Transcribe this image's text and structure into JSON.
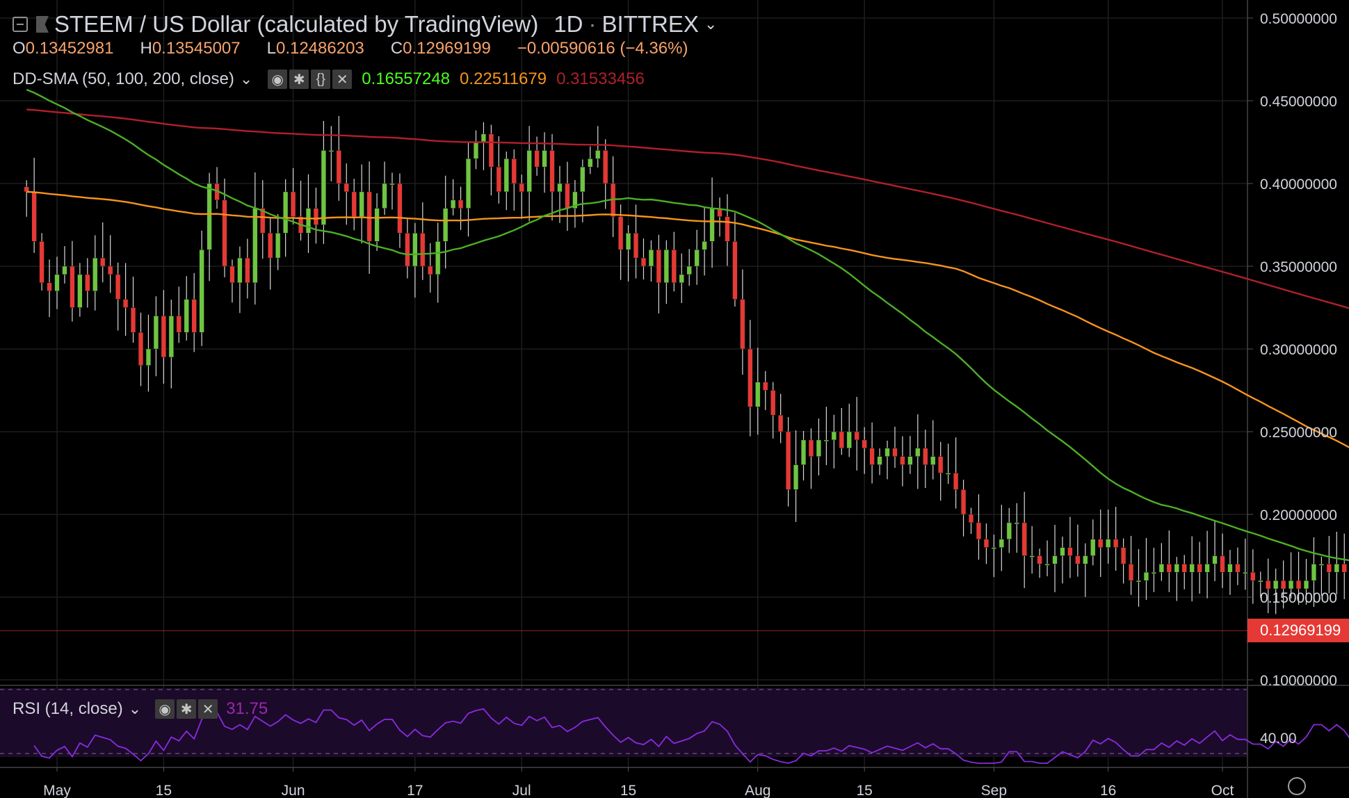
{
  "header": {
    "title": "STEEM / US Dollar (calculated by TradingView)",
    "interval": "1D",
    "exchange": "BITTREX"
  },
  "ohlc": {
    "open_label": "O",
    "open": "0.13452981",
    "high_label": "H",
    "high": "0.13545007",
    "low_label": "L",
    "low": "0.12486203",
    "close_label": "C",
    "close": "0.12969199",
    "change": "−0.00590616 (−4.36%)"
  },
  "sma_legend": {
    "name": "DD-SMA (50, 100, 200, close)",
    "sma50": "0.16557248",
    "sma100": "0.22511679",
    "sma200": "0.31533456"
  },
  "rsi_legend": {
    "name": "RSI (14, close)",
    "value": "31.75"
  },
  "last_price_tag": "0.12969199",
  "colors": {
    "up": "#6ec541",
    "down": "#e53935",
    "sma50": "#4caf26",
    "sma100": "#f7941d",
    "sma200": "#b0202a",
    "rsi": "#8a2be2",
    "rsi_bg": "#1c0a2a",
    "grid": "#1e1e1e",
    "axis_text": "#d1d4dc"
  },
  "icons": [
    "collapse-icon",
    "flag-icon",
    "chevron-down-icon",
    "eye-icon",
    "gear-icon",
    "code-icon",
    "close-icon",
    "settings-circle-icon"
  ],
  "chart_data": [
    {
      "type": "candlestick",
      "title": "STEEM / US Dollar (calculated by TradingView) 1D BITTREX",
      "x_tick_labels": [
        "May",
        "15",
        "Jun",
        "17",
        "Jul",
        "15",
        "Aug",
        "15",
        "Sep",
        "16",
        "Oct"
      ],
      "y_tick_labels": [
        "0.50000000",
        "0.45000000",
        "0.40000000",
        "0.35000000",
        "0.30000000",
        "0.25000000",
        "0.20000000",
        "0.15000000",
        "0.10000000"
      ],
      "ylim": [
        0.1,
        0.5
      ],
      "x_start": "2019-04-27",
      "closes": [
        0.395,
        0.365,
        0.34,
        0.335,
        0.345,
        0.35,
        0.325,
        0.345,
        0.335,
        0.355,
        0.35,
        0.345,
        0.33,
        0.325,
        0.31,
        0.29,
        0.3,
        0.32,
        0.295,
        0.32,
        0.31,
        0.33,
        0.31,
        0.36,
        0.4,
        0.39,
        0.35,
        0.34,
        0.355,
        0.34,
        0.385,
        0.37,
        0.355,
        0.37,
        0.395,
        0.38,
        0.37,
        0.385,
        0.375,
        0.42,
        0.42,
        0.4,
        0.395,
        0.38,
        0.395,
        0.365,
        0.385,
        0.4,
        0.4,
        0.37,
        0.35,
        0.37,
        0.35,
        0.345,
        0.365,
        0.385,
        0.39,
        0.385,
        0.415,
        0.425,
        0.43,
        0.41,
        0.395,
        0.415,
        0.4,
        0.395,
        0.42,
        0.41,
        0.42,
        0.395,
        0.4,
        0.385,
        0.395,
        0.41,
        0.415,
        0.42,
        0.4,
        0.38,
        0.36,
        0.37,
        0.355,
        0.35,
        0.36,
        0.34,
        0.36,
        0.34,
        0.345,
        0.35,
        0.36,
        0.365,
        0.385,
        0.38,
        0.365,
        0.33,
        0.3,
        0.265,
        0.28,
        0.275,
        0.26,
        0.25,
        0.215,
        0.23,
        0.245,
        0.235,
        0.245,
        0.245,
        0.25,
        0.24,
        0.25,
        0.245,
        0.24,
        0.23,
        0.235,
        0.24,
        0.235,
        0.23,
        0.235,
        0.24,
        0.23,
        0.235,
        0.225,
        0.225,
        0.215,
        0.2,
        0.195,
        0.185,
        0.18,
        0.18,
        0.185,
        0.195,
        0.195,
        0.175,
        0.175,
        0.17,
        0.17,
        0.175,
        0.18,
        0.175,
        0.17,
        0.175,
        0.185,
        0.18,
        0.185,
        0.18,
        0.17,
        0.16,
        0.16,
        0.165,
        0.165,
        0.17,
        0.165,
        0.17,
        0.165,
        0.17,
        0.165,
        0.17,
        0.175,
        0.165,
        0.17,
        0.165,
        0.165,
        0.16,
        0.16,
        0.155,
        0.16,
        0.155,
        0.16,
        0.155,
        0.16,
        0.17,
        0.17,
        0.165,
        0.17,
        0.165,
        0.155,
        0.13,
        0.135,
        0.13,
        0.137,
        0.137,
        0.13
      ],
      "sma50_endpoints": {
        "start": 0.458,
        "end": 0.1656
      },
      "sma100_endpoints": {
        "start": 0.395,
        "end": 0.2251
      },
      "sma200_endpoints": {
        "start": 0.445,
        "end": 0.3153
      }
    },
    {
      "type": "line",
      "title": "RSI (14, close)",
      "y_tick_labels": [
        "40.00"
      ],
      "ylim": [
        28,
        75
      ],
      "bands": [
        30,
        70
      ],
      "last_value": 31.75
    }
  ]
}
